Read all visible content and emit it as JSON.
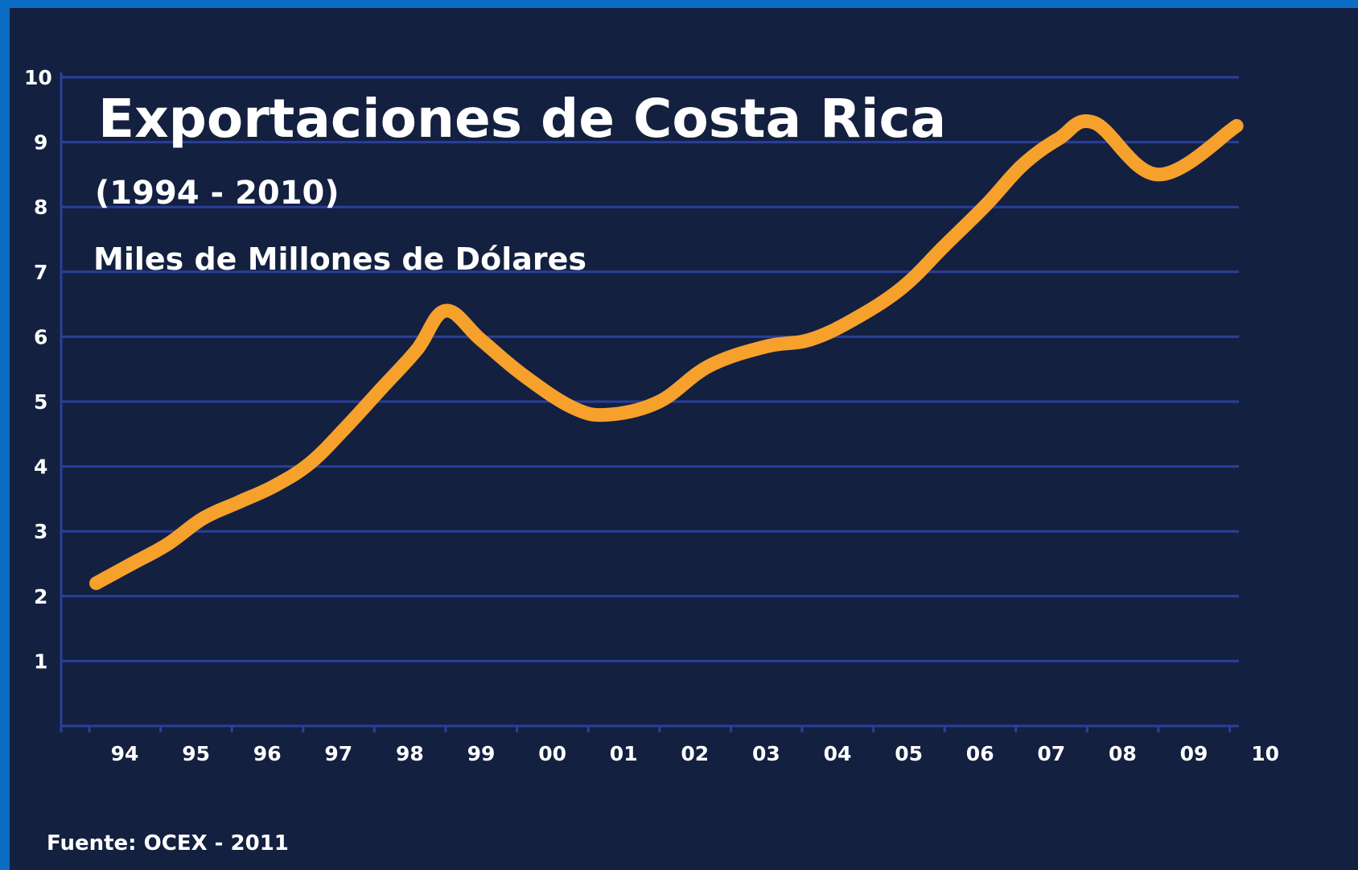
{
  "colors": {
    "background": "#142040",
    "frame": "#0b6cc4",
    "gridline": "#2a3f9a",
    "line": "#f5a12c",
    "text": "#ffffff"
  },
  "chart_data": {
    "type": "line",
    "title": "Exportaciones de Costa Rica",
    "subtitle": "(1994 - 2010)",
    "ylabel": "Miles de Millones de Dólares",
    "source": "Fuente: OCEX - 2011",
    "x_tick_labels": [
      "94",
      "95",
      "96",
      "97",
      "98",
      "99",
      "00",
      "01",
      "02",
      "03",
      "04",
      "05",
      "06",
      "07",
      "08",
      "09",
      "10"
    ],
    "y_tick_labels": [
      "1",
      "2",
      "3",
      "4",
      "5",
      "6",
      "7",
      "8",
      "9",
      "10"
    ],
    "ylim": [
      0,
      10
    ],
    "grid": true,
    "series": [
      {
        "values": [
          [
            1993.6,
            2.2
          ],
          [
            1994.1,
            2.5
          ],
          [
            1994.6,
            2.8
          ],
          [
            1995.1,
            3.2
          ],
          [
            1995.6,
            3.45
          ],
          [
            1996.1,
            3.7
          ],
          [
            1996.6,
            4.05
          ],
          [
            1997.1,
            4.6
          ],
          [
            1997.6,
            5.2
          ],
          [
            1998.1,
            5.8
          ],
          [
            1998.5,
            6.4
          ],
          [
            1999.0,
            5.95
          ],
          [
            1999.6,
            5.4
          ],
          [
            2000.3,
            4.9
          ],
          [
            2000.8,
            4.8
          ],
          [
            2001.5,
            5.0
          ],
          [
            2002.2,
            5.55
          ],
          [
            2003.0,
            5.85
          ],
          [
            2003.6,
            5.95
          ],
          [
            2004.2,
            6.25
          ],
          [
            2004.9,
            6.75
          ],
          [
            2005.5,
            7.4
          ],
          [
            2006.1,
            8.05
          ],
          [
            2006.6,
            8.65
          ],
          [
            2007.1,
            9.05
          ],
          [
            2007.6,
            9.3
          ],
          [
            2008.5,
            8.5
          ],
          [
            2009.6,
            9.25
          ]
        ]
      }
    ]
  }
}
